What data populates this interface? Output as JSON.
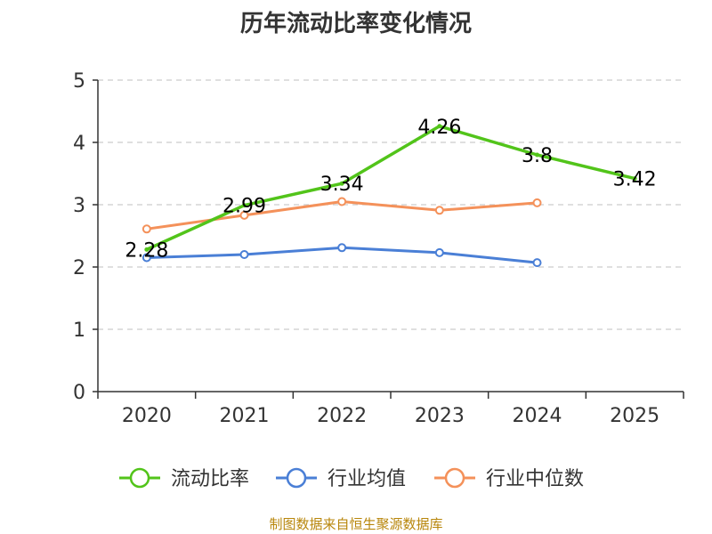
{
  "chart_data": {
    "type": "line",
    "title": "历年流动比率变化情况",
    "categories": [
      "2020",
      "2021",
      "2022",
      "2023",
      "2024",
      "2025"
    ],
    "ylim": [
      0,
      5
    ],
    "yticks": [
      "0",
      "1",
      "2",
      "3",
      "4",
      "5"
    ],
    "grid": true,
    "legend_position": "bottom",
    "series": [
      {
        "name": "流动比率",
        "color": "#52c41a",
        "values": [
          2.28,
          2.99,
          3.34,
          4.26,
          3.8,
          3.42
        ],
        "labels": [
          "2.28",
          "2.99",
          "3.34",
          "4.26",
          "3.8",
          "3.42"
        ]
      },
      {
        "name": "行业均值",
        "color": "#4a7fd6",
        "values": [
          2.15,
          2.2,
          2.31,
          2.23,
          2.07,
          null
        ]
      },
      {
        "name": "行业中位数",
        "color": "#f4915a",
        "values": [
          2.61,
          2.83,
          3.05,
          2.91,
          3.03,
          null
        ]
      }
    ]
  },
  "source": "制图数据来自恒生聚源数据库"
}
